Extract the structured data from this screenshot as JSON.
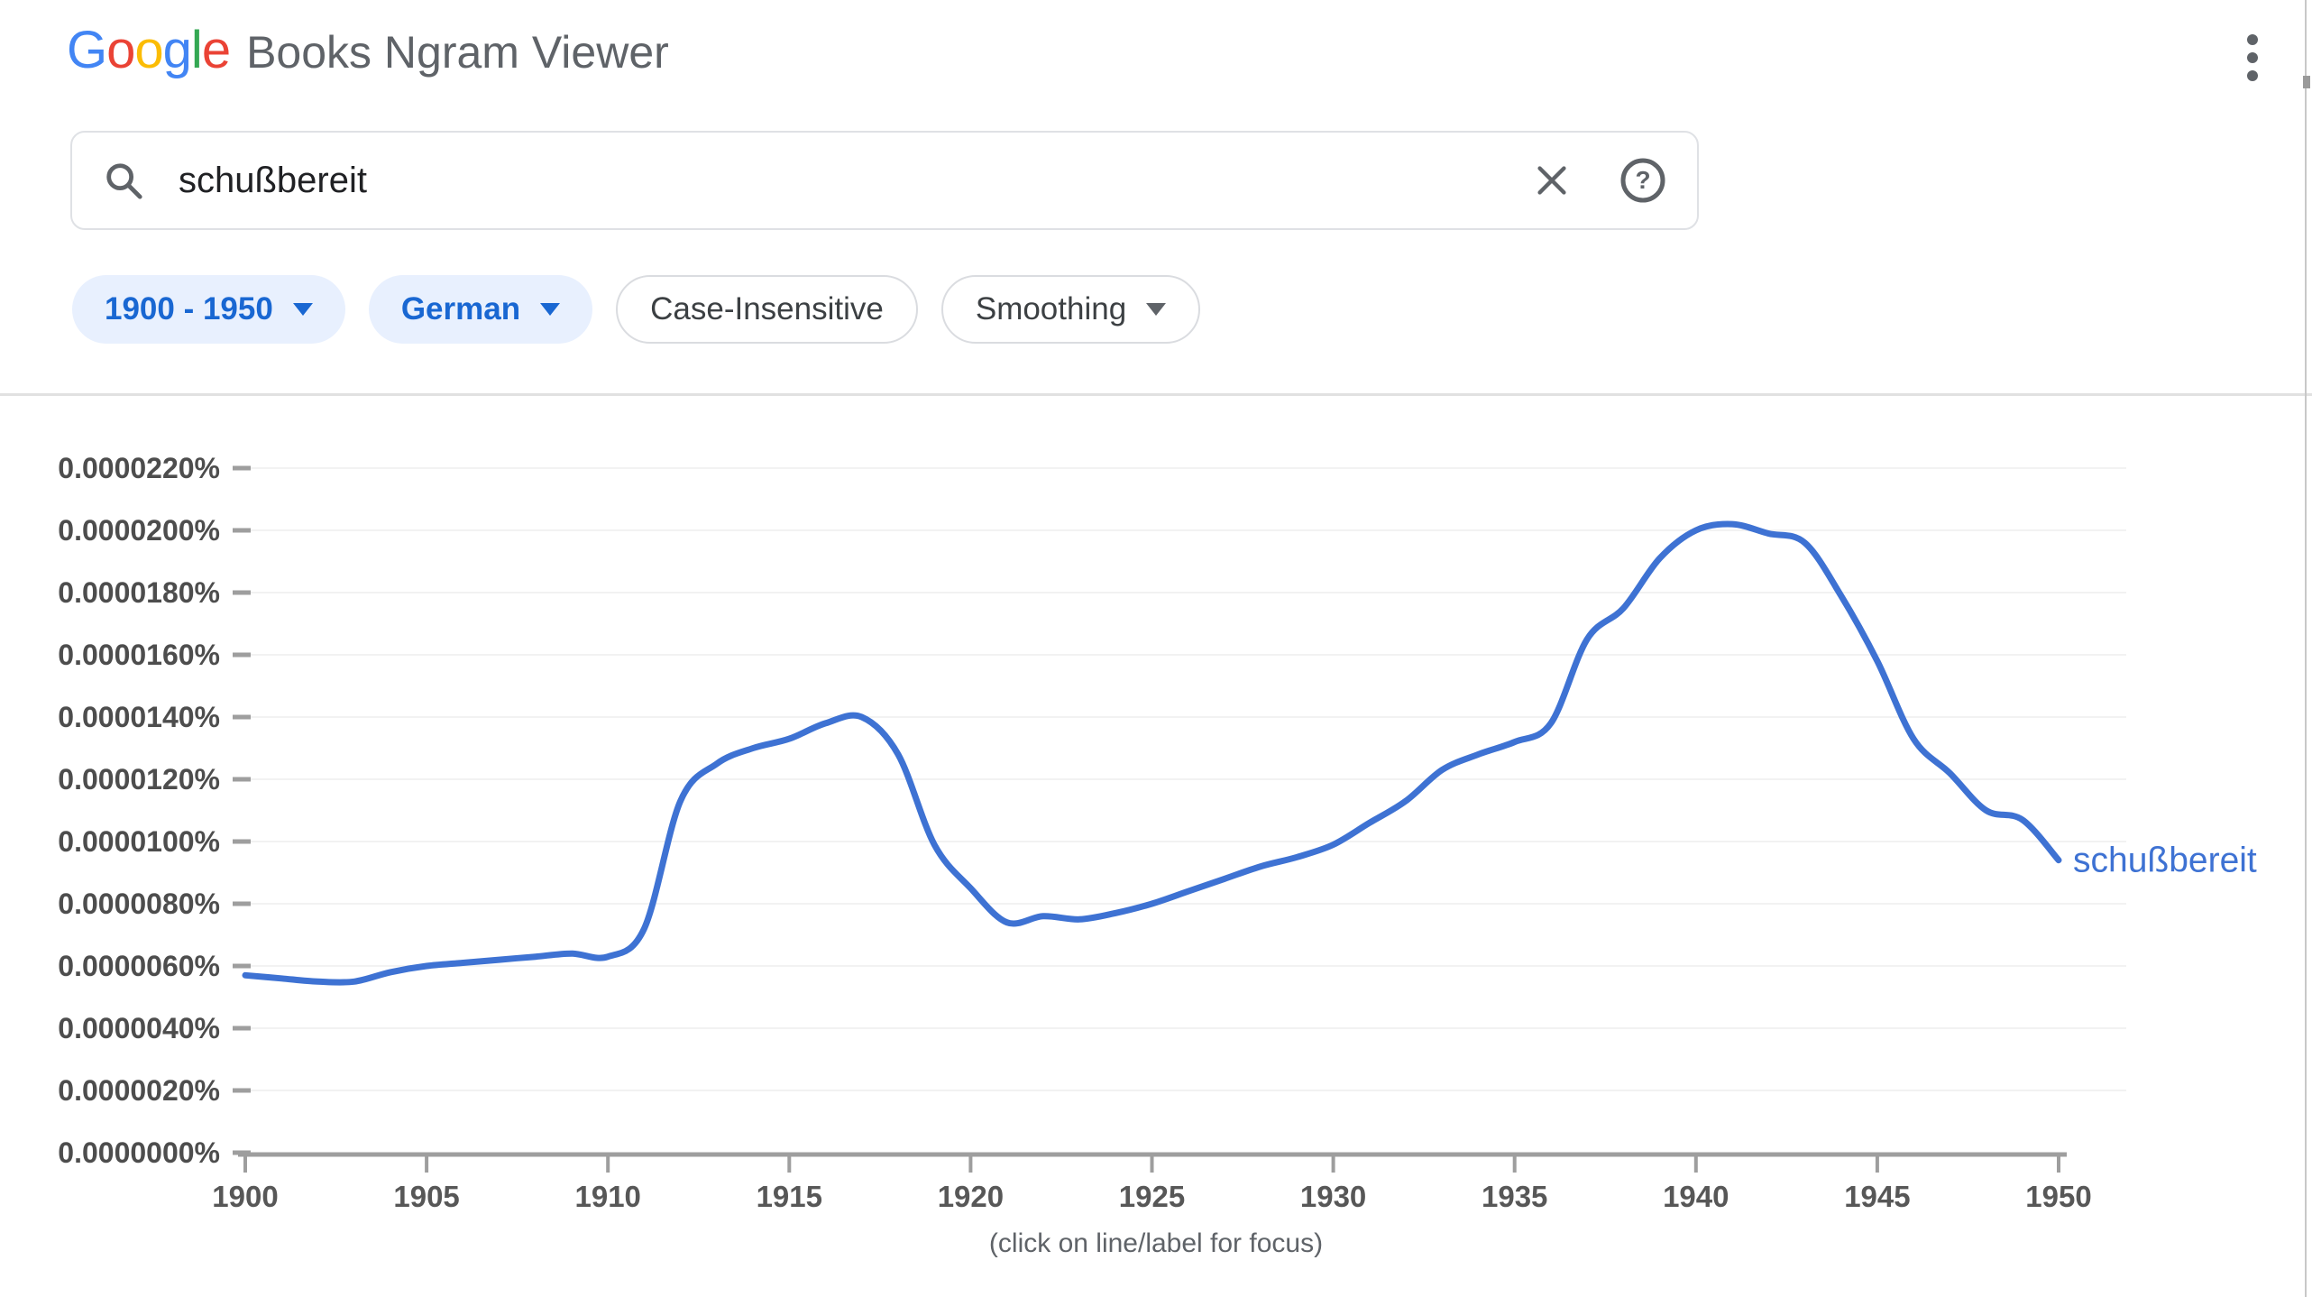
{
  "header": {
    "logo_letters": [
      {
        "char": "G",
        "color": "#4285F4"
      },
      {
        "char": "o",
        "color": "#EA4335"
      },
      {
        "char": "o",
        "color": "#FBBC05"
      },
      {
        "char": "g",
        "color": "#4285F4"
      },
      {
        "char": "l",
        "color": "#34A853"
      },
      {
        "char": "e",
        "color": "#EA4335"
      }
    ],
    "app_title": "Books Ngram Viewer"
  },
  "search": {
    "value": "schußbereit"
  },
  "filters": {
    "year_range": "1900 - 1950",
    "corpus": "German",
    "case_option": "Case-Insensitive",
    "smoothing": "Smoothing"
  },
  "footer": {
    "hint": "(click on line/label for focus)"
  },
  "chart_data": {
    "type": "line",
    "title": "",
    "xlabel": "",
    "ylabel": "",
    "grid": true,
    "legend_position": "right-end-of-line",
    "xlim": [
      1900,
      1950
    ],
    "ylim_percent": [
      0,
      2.2e-05
    ],
    "x_ticks": [
      1900,
      1905,
      1910,
      1915,
      1920,
      1925,
      1930,
      1935,
      1940,
      1945,
      1950
    ],
    "y_tick_labels": [
      "0.0000000%",
      "0.0000020%",
      "0.0000040%",
      "0.0000060%",
      "0.0000080%",
      "0.0000100%",
      "0.0000120%",
      "0.0000140%",
      "0.0000160%",
      "0.0000180%",
      "0.0000200%",
      "0.0000220%"
    ],
    "series": [
      {
        "name": "schußbereit",
        "color": "#3e72d3",
        "x": [
          1900,
          1901,
          1902,
          1903,
          1904,
          1905,
          1906,
          1907,
          1908,
          1909,
          1910,
          1911,
          1912,
          1913,
          1914,
          1915,
          1916,
          1917,
          1918,
          1919,
          1920,
          1921,
          1922,
          1923,
          1924,
          1925,
          1926,
          1927,
          1928,
          1929,
          1930,
          1931,
          1932,
          1933,
          1934,
          1935,
          1936,
          1937,
          1938,
          1939,
          1940,
          1941,
          1942,
          1943,
          1944,
          1945,
          1946,
          1947,
          1948,
          1949,
          1950
        ],
        "values_percent": [
          5.7e-06,
          5.6e-06,
          5.5e-06,
          5.5e-06,
          5.8e-06,
          6e-06,
          6.1e-06,
          6.2e-06,
          6.3e-06,
          6.4e-06,
          6.3e-06,
          7.2e-06,
          1.13e-05,
          1.25e-05,
          1.3e-05,
          1.33e-05,
          1.38e-05,
          1.4e-05,
          1.28e-05,
          9.9e-06,
          8.5e-06,
          7.4e-06,
          7.6e-06,
          7.5e-06,
          7.7e-06,
          8e-06,
          8.4e-06,
          8.8e-06,
          9.2e-06,
          9.5e-06,
          9.9e-06,
          1.06e-05,
          1.13e-05,
          1.23e-05,
          1.28e-05,
          1.32e-05,
          1.38e-05,
          1.65e-05,
          1.75e-05,
          1.91e-05,
          2e-05,
          2.02e-05,
          1.99e-05,
          1.96e-05,
          1.79e-05,
          1.58e-05,
          1.33e-05,
          1.22e-05,
          1.1e-05,
          1.07e-05,
          9.4e-06
        ]
      }
    ],
    "annotation": "(click on line/label for focus)"
  },
  "colors": {
    "line_blue": "#3e72d3",
    "chip_blue_bg": "#e8f0fe",
    "chip_blue_text": "#1967d2",
    "axis_gray": "#9e9e9e",
    "grid_gray": "#f2f2f2",
    "tick_label_gray": "#4d4d4d",
    "muted_text": "#5f6368"
  }
}
